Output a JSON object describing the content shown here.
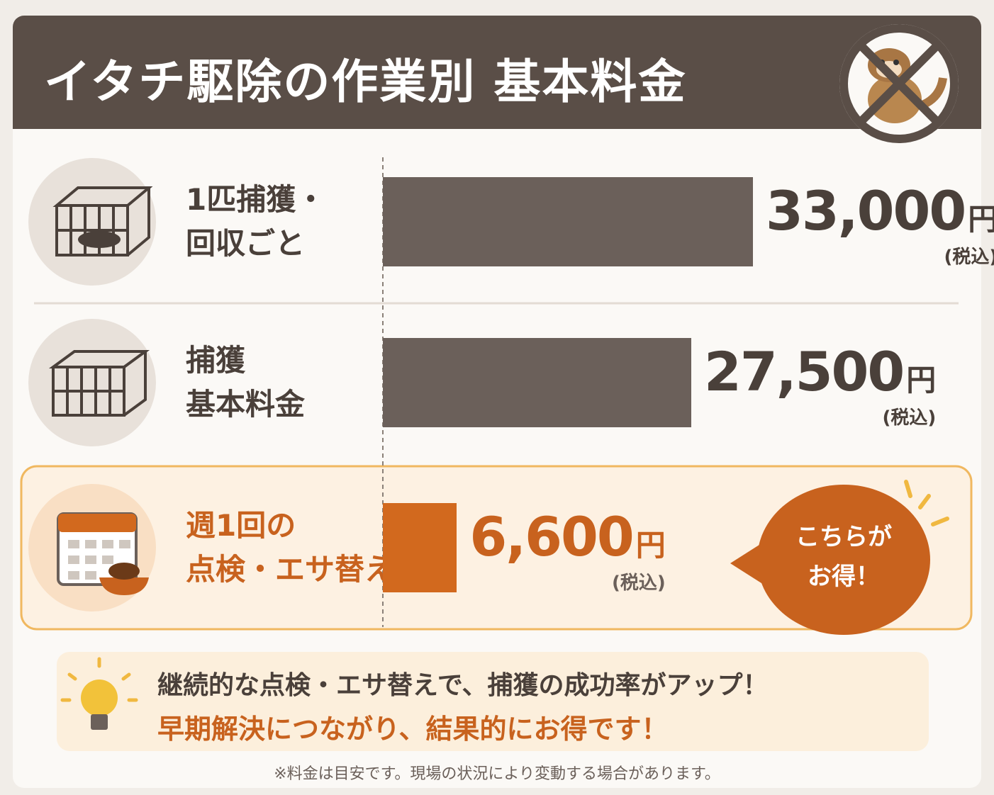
{
  "chart_data": {
    "type": "bar",
    "title": "イタチ駆除の作業別 基本料金",
    "categories": [
      "1匹捕獲・\n回収ごと",
      "捕獲\n基本料金",
      "週1回の\n点検・エサ替え"
    ],
    "values": [
      33000,
      27500,
      6600
    ],
    "value_labels": [
      "33,000",
      "27,500",
      "6,600"
    ],
    "unit": "円",
    "tax_note": "(税込)",
    "colors": [
      "#6b605a",
      "#6b605a",
      "#d2691e"
    ],
    "callout": "こちらが\nお得！",
    "tip": [
      "継続的な点検・エサ替えで、捕獲の成功率がアップ！",
      "早期解決につながり、結果的にお得です！"
    ],
    "footnote": "※料金は目安です。現場の状況により変動する場合があります。"
  }
}
